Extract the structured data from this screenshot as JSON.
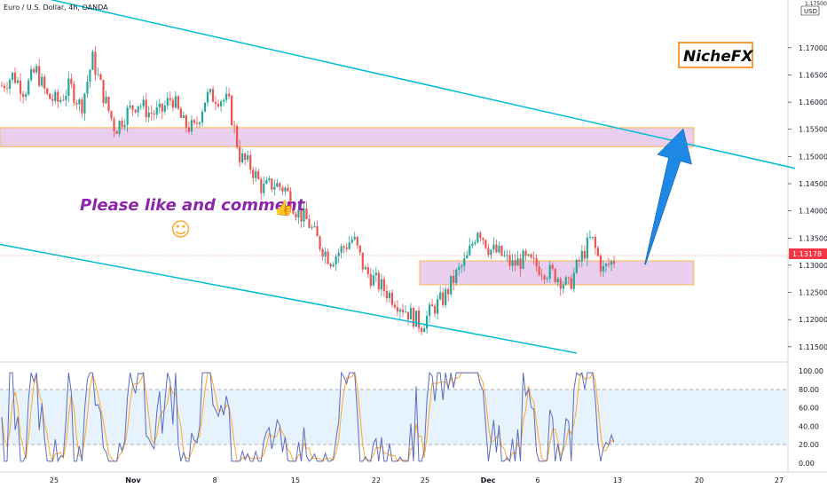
{
  "header": {
    "symbol": "Euro / U.S. Dollar, 4h, OANDA",
    "currency_top": "1.17500",
    "currency": "USD"
  },
  "brand": {
    "label": "NicheFX",
    "border_color": "#f57c00"
  },
  "annotation": {
    "text": "Please like and comment",
    "smile": "☺",
    "thumb": "👍"
  },
  "current_price": {
    "label": "1.13178",
    "color": "#f23645"
  },
  "colors": {
    "up": "#26a69a",
    "down": "#ef5350",
    "channel": "#00bcd4",
    "zone_fill": "#e1bee7",
    "zone_border": "#ffb74d",
    "arrow": "#1e88e5",
    "stoch_k": "#5c6bc0",
    "stoch_d": "#ffa726",
    "stoch_band": "#e3f2fd"
  },
  "chart_data": {
    "type": "candlestick",
    "title": "Euro / U.S. Dollar, 4h, OANDA",
    "price_axis": {
      "ticks": [
        "1.17000",
        "1.16500",
        "1.16000",
        "1.15500",
        "1.15000",
        "1.14500",
        "1.14000",
        "1.13500",
        "1.13000",
        "1.12500",
        "1.12000",
        "1.11500"
      ],
      "range": [
        1.1135,
        1.1765
      ]
    },
    "time_axis": {
      "ticks": [
        "25",
        "Nov",
        "8",
        "15",
        "22",
        "25",
        "Dec",
        "6",
        "13",
        "20",
        "27"
      ]
    },
    "zones": [
      {
        "name": "upper-resistance-zone",
        "price_top": 1.1553,
        "price_bottom": 1.1518
      },
      {
        "name": "lower-consolidation-zone",
        "price_top": 1.1308,
        "price_bottom": 1.1264
      }
    ],
    "channel": {
      "upper_line": [
        [
          1.18,
          1.1475
        ]
      ],
      "lower_line": [
        [
          1.1335,
          1.114
        ]
      ]
    },
    "price_path": [
      1.163,
      1.165,
      1.162,
      1.166,
      1.161,
      1.16,
      1.163,
      1.159,
      1.168,
      1.161,
      1.155,
      1.158,
      1.16,
      1.158,
      1.158,
      1.161,
      1.156,
      1.155,
      1.161,
      1.161,
      1.16,
      1.15,
      1.148,
      1.144,
      1.145,
      1.144,
      1.14,
      1.138,
      1.134,
      1.131,
      1.133,
      1.135,
      1.129,
      1.127,
      1.125,
      1.123,
      1.121,
      1.119,
      1.122,
      1.124,
      1.128,
      1.131,
      1.137,
      1.133,
      1.132,
      1.13,
      1.131,
      1.13,
      1.129,
      1.128,
      1.126,
      1.131,
      1.135,
      1.129,
      1.131
    ],
    "stochastic": {
      "ticks": [
        "100.00",
        "80.00",
        "60.00",
        "40.00",
        "20.00",
        "0.00"
      ],
      "upper_band": 80,
      "lower_band": 20
    }
  }
}
